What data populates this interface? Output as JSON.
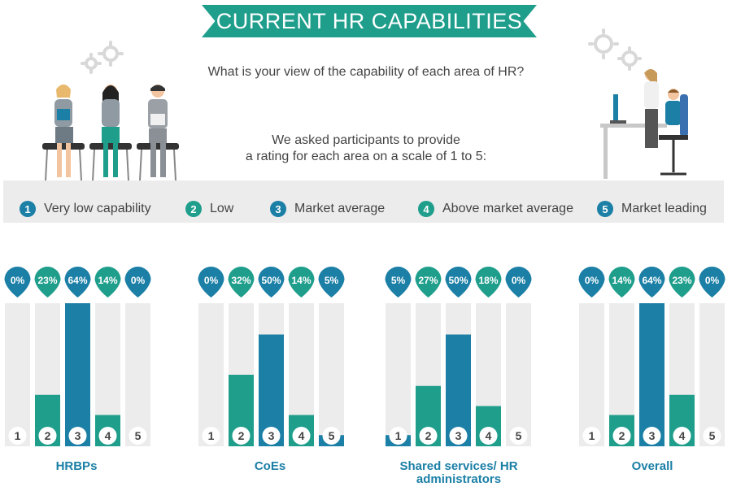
{
  "header": {
    "title": "CURRENT HR CAPABILITIES",
    "question": "What is your view of the capability of each area of HR?",
    "intro_line1": "We asked participants to provide",
    "intro_line2": "a rating for each area on a scale of 1 to 5:"
  },
  "legend": [
    {
      "num": "1",
      "label": "Very low capability",
      "color": "#1b7fa6"
    },
    {
      "num": "2",
      "label": "Low",
      "color": "#1f9e8c"
    },
    {
      "num": "3",
      "label": "Market average",
      "color": "#1b7fa6"
    },
    {
      "num": "4",
      "label": "Above market average",
      "color": "#1f9e8c"
    },
    {
      "num": "5",
      "label": "Market leading",
      "color": "#1b7fa6"
    }
  ],
  "colors": {
    "blue": "#1b7fa6",
    "teal": "#1f9e8c",
    "track": "#ececec"
  },
  "chart_data": [
    {
      "type": "bar",
      "title": "HRBPs",
      "categories": [
        "1",
        "2",
        "3",
        "4",
        "5"
      ],
      "values": [
        0,
        23,
        64,
        14,
        0
      ],
      "value_labels": [
        "0%",
        "23%",
        "64%",
        "14%",
        "0%"
      ],
      "ylim": [
        0,
        100
      ]
    },
    {
      "type": "bar",
      "title": "CoEs",
      "categories": [
        "1",
        "2",
        "3",
        "4",
        "5"
      ],
      "values": [
        0,
        32,
        50,
        14,
        5
      ],
      "value_labels": [
        "0%",
        "32%",
        "50%",
        "14%",
        "5%"
      ],
      "ylim": [
        0,
        100
      ]
    },
    {
      "type": "bar",
      "title_line1": "Shared services/ HR",
      "title_line2": "administrators",
      "categories": [
        "1",
        "2",
        "3",
        "4",
        "5"
      ],
      "values": [
        5,
        27,
        50,
        18,
        0
      ],
      "value_labels": [
        "5%",
        "27%",
        "50%",
        "18%",
        "0%"
      ],
      "ylim": [
        0,
        100
      ]
    },
    {
      "type": "bar",
      "title": "Overall",
      "categories": [
        "1",
        "2",
        "3",
        "4",
        "5"
      ],
      "values": [
        0,
        14,
        64,
        23,
        0
      ],
      "value_labels": [
        "0%",
        "14%",
        "64%",
        "23%",
        "0%"
      ],
      "ylim": [
        0,
        100
      ]
    }
  ]
}
